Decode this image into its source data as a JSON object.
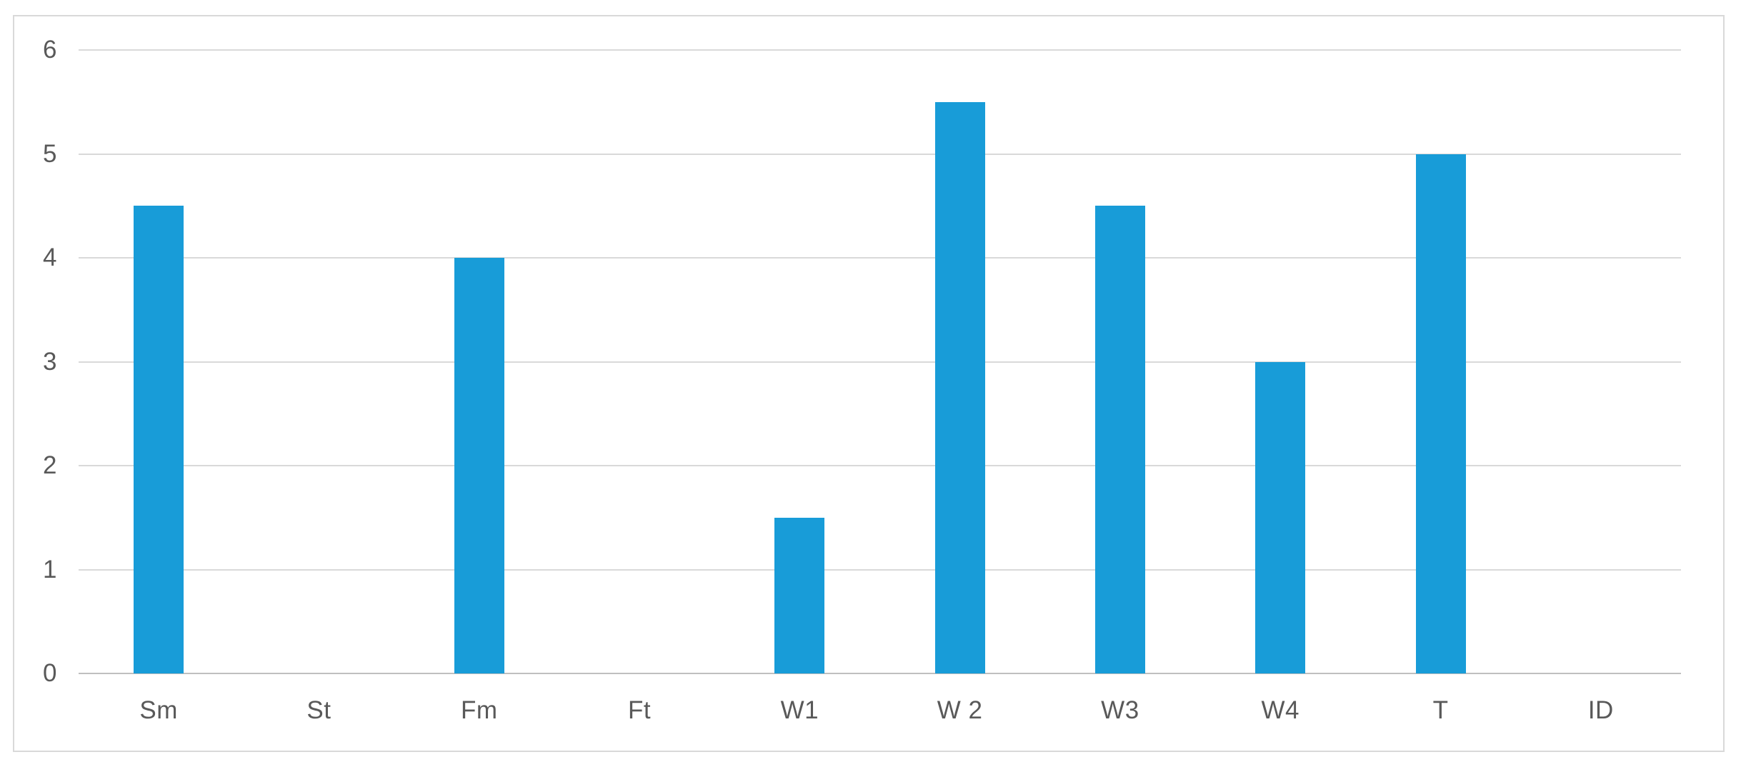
{
  "chart_data": {
    "type": "bar",
    "title": "",
    "xlabel": "",
    "ylabel": "",
    "categories": [
      "Sm",
      "St",
      "Fm",
      "Ft",
      "W1",
      "W 2",
      "W3",
      "W4",
      "T",
      "ID"
    ],
    "values": [
      4.5,
      0,
      4,
      0,
      1.5,
      5.5,
      4.5,
      3,
      5,
      0
    ],
    "ylim": [
      0,
      6
    ],
    "yticks": [
      0,
      1,
      2,
      3,
      4,
      5,
      6
    ],
    "grid": true,
    "legend": false,
    "colors": {
      "bar": "#189cd8",
      "gridline": "#d9d9d9",
      "axis_line": "#bfbfbf",
      "tick_text": "#595959",
      "frame_border": "#d9d9d9",
      "background": "#ffffff"
    }
  },
  "layout_note": "single clustered-column chart, no title, no legend"
}
